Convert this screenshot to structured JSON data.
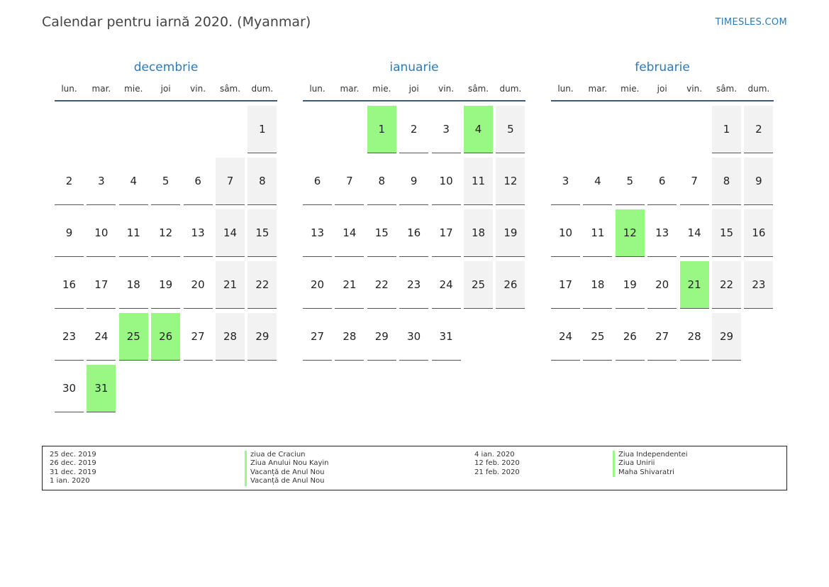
{
  "header": {
    "title": "Calendar pentru iarnă 2020. (Myanmar)",
    "site": "TIMESLES.COM"
  },
  "colors": {
    "accent": "#2e7ab8",
    "holiday": "#99f883",
    "weekend": "#f2f2f2",
    "separator": "#3f5b7c"
  },
  "weekdays": [
    "lun.",
    "mar.",
    "mie.",
    "joi",
    "vin.",
    "sâm.",
    "dum."
  ],
  "months": [
    {
      "name": "decembrie",
      "start_weekday": 6,
      "days": 31,
      "holidays": [
        25,
        26,
        31
      ]
    },
    {
      "name": "ianuarie",
      "start_weekday": 2,
      "days": 31,
      "holidays": [
        1,
        4
      ]
    },
    {
      "name": "februarie",
      "start_weekday": 5,
      "days": 29,
      "holidays": [
        12,
        21
      ]
    }
  ],
  "legend": [
    {
      "date": "25 dec. 2019",
      "name": "ziua de Craciun"
    },
    {
      "date": "26 dec. 2019",
      "name": "Ziua Anului Nou Kayin"
    },
    {
      "date": "31 dec. 2019",
      "name": "Vacanță de Anul Nou"
    },
    {
      "date": "1 ian. 2020",
      "name": "Vacanță de Anul Nou"
    },
    {
      "date": "4 ian. 2020",
      "name": "Ziua Independentei"
    },
    {
      "date": "12 feb. 2020",
      "name": "Ziua Unirii"
    },
    {
      "date": "21 feb. 2020",
      "name": "Maha Shivaratri"
    }
  ]
}
